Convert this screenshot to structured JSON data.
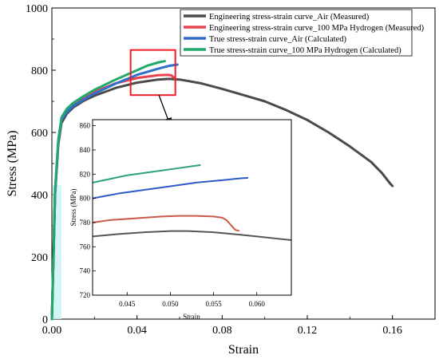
{
  "colors": {
    "eng_air": "#4a4a4a",
    "eng_h2": "#e8434f",
    "true_air": "#2f6fcb",
    "true_h2": "#22a86b",
    "zoom_box": "#ee1c25",
    "eng_air_line": "#555555",
    "eng_h2_line": "#c95a4a",
    "true_air_line": "#2a5bc9",
    "true_h2_line": "#2ea27a"
  },
  "chart_data": [
    {
      "type": "line",
      "xlabel": "Strain",
      "ylabel": "Stress (MPa)",
      "xlim": [
        0,
        0.18
      ],
      "ylim": [
        0,
        1000
      ],
      "x_ticks": [
        "0.00",
        "0.04",
        "0.08",
        "0.12",
        "0.16"
      ],
      "x_tick_values": [
        0,
        0.04,
        0.08,
        0.12,
        0.16
      ],
      "y_ticks": [
        "0",
        "200",
        "400",
        "600",
        "800",
        "1000"
      ],
      "y_tick_values": [
        0,
        200,
        400,
        600,
        800,
        1000
      ],
      "legend_position": "top-right",
      "series": [
        {
          "name": "Engineering stress-strain curve_Air (Measured)",
          "color": "#4a4a4a",
          "points": [
            [
              0,
              0
            ],
            [
              0.0015,
              400
            ],
            [
              0.003,
              560
            ],
            [
              0.0045,
              630
            ],
            [
              0.007,
              660
            ],
            [
              0.01,
              680
            ],
            [
              0.015,
              702
            ],
            [
              0.02,
              718
            ],
            [
              0.03,
              743
            ],
            [
              0.04,
              760
            ],
            [
              0.05,
              770
            ],
            [
              0.055,
              772
            ],
            [
              0.06,
              770
            ],
            [
              0.07,
              758
            ],
            [
              0.08,
              740
            ],
            [
              0.09,
              720
            ],
            [
              0.1,
              700
            ],
            [
              0.11,
              672
            ],
            [
              0.12,
              640
            ],
            [
              0.13,
              600
            ],
            [
              0.14,
              555
            ],
            [
              0.15,
              505
            ],
            [
              0.155,
              470
            ],
            [
              0.159,
              435
            ],
            [
              0.16,
              428
            ]
          ]
        },
        {
          "name": "Engineering stress-strain curve_100 MPa Hydrogen (Measured)",
          "color": "#e8434f",
          "points": [
            [
              0,
              0
            ],
            [
              0.0015,
              410
            ],
            [
              0.003,
              570
            ],
            [
              0.0045,
              640
            ],
            [
              0.007,
              670
            ],
            [
              0.01,
              690
            ],
            [
              0.015,
              710
            ],
            [
              0.02,
              730
            ],
            [
              0.03,
              758
            ],
            [
              0.04,
              775
            ],
            [
              0.05,
              784
            ],
            [
              0.054,
              785
            ],
            [
              0.056,
              784
            ],
            [
              0.057,
              778
            ],
            [
              0.058,
              773
            ]
          ]
        },
        {
          "name": "True stress-strain curve_Air (Calculated)",
          "color": "#2f6fcb",
          "points": [
            [
              0,
              0
            ],
            [
              0.0015,
              405
            ],
            [
              0.003,
              565
            ],
            [
              0.0045,
              640
            ],
            [
              0.007,
              665
            ],
            [
              0.01,
              685
            ],
            [
              0.015,
              706
            ],
            [
              0.02,
              725
            ],
            [
              0.03,
              757
            ],
            [
              0.04,
              785
            ],
            [
              0.05,
              805
            ],
            [
              0.055,
              814
            ],
            [
              0.059,
              818
            ]
          ]
        },
        {
          "name": "True stress-strain curve_100 MPa Hydrogen (Calculated)",
          "color": "#22a86b",
          "points": [
            [
              0,
              0
            ],
            [
              0.0015,
              415
            ],
            [
              0.003,
              575
            ],
            [
              0.0045,
              648
            ],
            [
              0.007,
              676
            ],
            [
              0.01,
              695
            ],
            [
              0.015,
              717
            ],
            [
              0.02,
              737
            ],
            [
              0.03,
              770
            ],
            [
              0.04,
              800
            ],
            [
              0.045,
              815
            ],
            [
              0.05,
              825
            ],
            [
              0.053,
              829
            ]
          ]
        }
      ],
      "zoom_region": {
        "x": [
          0.037,
          0.058
        ],
        "y": [
          720,
          865
        ]
      }
    },
    {
      "type": "line",
      "xlabel": "Strain",
      "ylabel": "Stress (MPa)",
      "xlim": [
        0.041,
        0.064
      ],
      "ylim": [
        720,
        865
      ],
      "x_ticks": [
        "0.045",
        "0.050",
        "0.055",
        "0.060"
      ],
      "x_tick_values": [
        0.045,
        0.05,
        0.055,
        0.06
      ],
      "y_ticks": [
        "720",
        "740",
        "760",
        "780",
        "800",
        "820",
        "840",
        "860"
      ],
      "y_tick_values": [
        720,
        740,
        760,
        780,
        800,
        820,
        840,
        860
      ],
      "series": [
        {
          "name": "Engineering stress-strain curve_Air (Measured)",
          "color": "#555555",
          "points": [
            [
              0.041,
              768.5
            ],
            [
              0.044,
              770.5
            ],
            [
              0.047,
              772
            ],
            [
              0.05,
              773
            ],
            [
              0.052,
              773
            ],
            [
              0.055,
              772
            ],
            [
              0.058,
              770
            ],
            [
              0.06,
              768.5
            ],
            [
              0.062,
              767
            ],
            [
              0.064,
              765.5
            ]
          ]
        },
        {
          "name": "Engineering stress-strain curve_100 MPa Hydrogen (Measured)",
          "color": "#c95a4a",
          "points": [
            [
              0.041,
              780
            ],
            [
              0.043,
              782
            ],
            [
              0.045,
              783
            ],
            [
              0.047,
              784
            ],
            [
              0.049,
              785
            ],
            [
              0.051,
              785.5
            ],
            [
              0.053,
              785.5
            ],
            [
              0.055,
              785
            ],
            [
              0.056,
              784
            ],
            [
              0.0565,
              782
            ],
            [
              0.057,
              778
            ],
            [
              0.0575,
              774
            ],
            [
              0.058,
              773
            ]
          ]
        },
        {
          "name": "True stress-strain curve_Air (Calculated)",
          "color": "#2a5bc9",
          "points": [
            [
              0.041,
              800
            ],
            [
              0.044,
              804
            ],
            [
              0.047,
              807
            ],
            [
              0.05,
              810
            ],
            [
              0.053,
              813
            ],
            [
              0.056,
              815
            ],
            [
              0.058,
              816.5
            ],
            [
              0.059,
              817
            ]
          ]
        },
        {
          "name": "True stress-strain curve_100 MPa Hydrogen (Calculated)",
          "color": "#2ea27a",
          "points": [
            [
              0.041,
              813
            ],
            [
              0.043,
              816
            ],
            [
              0.045,
              819
            ],
            [
              0.047,
              821
            ],
            [
              0.049,
              823
            ],
            [
              0.051,
              825
            ],
            [
              0.053,
              827
            ],
            [
              0.0535,
              827.5
            ]
          ]
        }
      ]
    }
  ]
}
